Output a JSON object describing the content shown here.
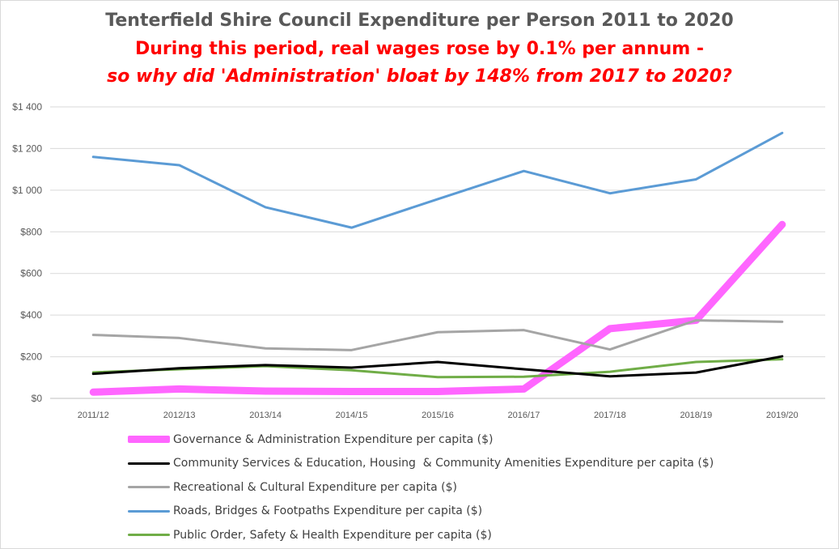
{
  "title": {
    "line1": "Tenterfield Shire Council Expenditure per Person 2011 to 2020",
    "line2": "During this period, real wages rose by 0.1% per annum -",
    "line3": "so why did 'Administration' bloat by 148% from 2017 to 2020?"
  },
  "chart_data": {
    "type": "line",
    "title": "Tenterfield Shire Council Expenditure per Person 2011 to 2020",
    "subtitle": "During this period, real wages rose by 0.1% per annum - so why did 'Administration' bloat by 148% from 2017 to 2020?",
    "xlabel": "",
    "ylabel": "",
    "categories": [
      "2011/12",
      "2012/13",
      "2013/14",
      "2014/15",
      "2015/16",
      "2016/17",
      "2017/18",
      "2018/19",
      "2019/20"
    ],
    "ylim": [
      0,
      1400
    ],
    "yticks": [
      0,
      200,
      400,
      600,
      800,
      1000,
      1200,
      1400
    ],
    "ytick_labels": [
      "$0",
      "$200",
      "$400",
      "$600",
      "$800",
      "$1 000",
      "$1 200",
      "$1 400"
    ],
    "grid": "horizontal",
    "legend_position": "bottom",
    "series": [
      {
        "name": "Governance & Administration Expenditure per capita ($)",
        "color": "#ff66ff",
        "values": [
          30,
          45,
          35,
          33,
          33,
          45,
          335,
          375,
          835
        ]
      },
      {
        "name": "Community Services & Education, Housing  & Community Amenities Expenditure per capita ($)",
        "color": "#000000",
        "values": [
          118,
          145,
          160,
          148,
          175,
          140,
          106,
          124,
          202
        ]
      },
      {
        "name": "Recreational & Cultural Expenditure per capita ($)",
        "color": "#a5a5a5",
        "values": [
          305,
          290,
          240,
          232,
          318,
          328,
          235,
          375,
          368
        ]
      },
      {
        "name": "Roads, Bridges & Footpaths Expenditure per capita ($)",
        "color": "#5b9bd5",
        "values": [
          1160,
          1120,
          918,
          820,
          957,
          1092,
          985,
          1052,
          1275
        ]
      },
      {
        "name": "Public Order, Safety & Health Expenditure per capita ($)",
        "color": "#70ad47",
        "values": [
          125,
          140,
          155,
          135,
          102,
          104,
          128,
          175,
          188
        ]
      }
    ]
  }
}
